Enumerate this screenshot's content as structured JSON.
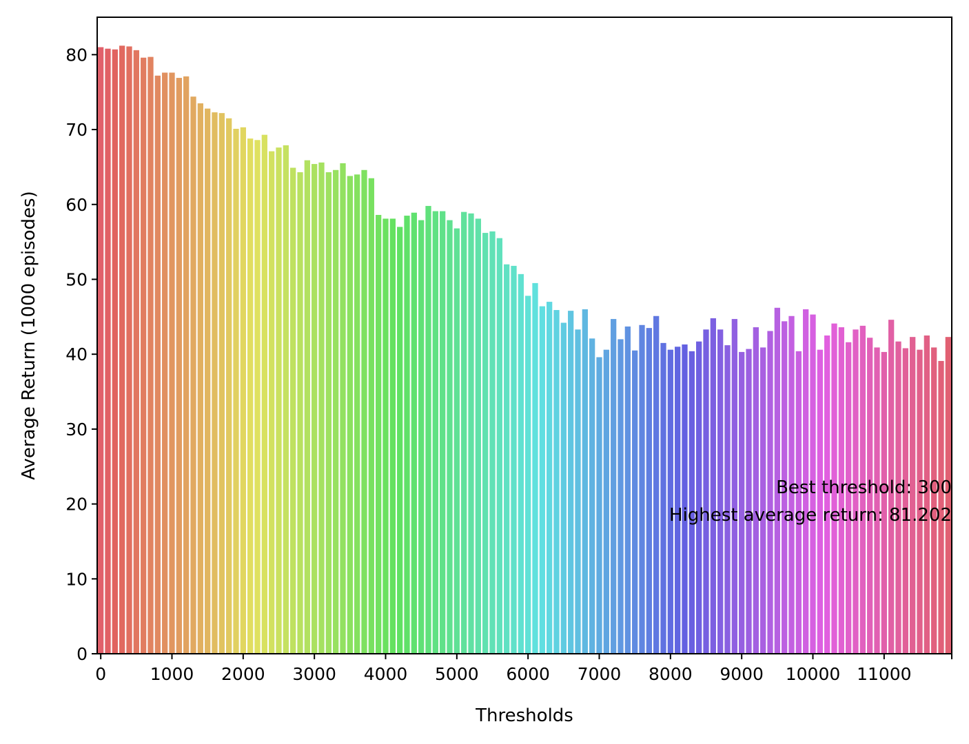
{
  "chart_data": {
    "type": "bar",
    "xlabel": "Thresholds",
    "ylabel": "Average Return (1000 episodes)",
    "ylim": [
      0,
      85
    ],
    "yticks": [
      0,
      10,
      20,
      30,
      40,
      50,
      60,
      70,
      80
    ],
    "xticks": [
      "0",
      "1000",
      "2000",
      "3000",
      "4000",
      "5000",
      "6000",
      "7000",
      "8000",
      "9000",
      "10000",
      "11000"
    ],
    "x_start": 0,
    "x_step": 100,
    "grid": false,
    "legend": "none",
    "palette": "husl (pink → orange → olive → green → teal → blue → purple → magenta → pink)",
    "annotation": {
      "line1": "Best threshold: 300",
      "line2": "Highest average return: 81.202"
    },
    "values": [
      81.0,
      80.8,
      80.7,
      81.2,
      81.1,
      80.6,
      79.6,
      79.7,
      77.2,
      77.6,
      77.6,
      76.9,
      77.1,
      74.4,
      73.5,
      72.8,
      72.3,
      72.2,
      71.5,
      70.1,
      70.3,
      68.8,
      68.6,
      69.3,
      67.1,
      67.6,
      67.9,
      64.9,
      64.3,
      65.9,
      65.4,
      65.6,
      64.3,
      64.6,
      65.5,
      63.8,
      64.0,
      64.6,
      63.5,
      58.6,
      58.1,
      58.1,
      57.0,
      58.5,
      58.9,
      57.9,
      59.8,
      59.1,
      59.1,
      57.9,
      56.8,
      59.0,
      58.8,
      58.1,
      56.2,
      56.4,
      55.5,
      52.0,
      51.8,
      50.7,
      47.8,
      49.5,
      46.4,
      47.0,
      45.9,
      44.2,
      45.8,
      43.3,
      46.0,
      42.1,
      39.6,
      40.6,
      44.7,
      42.0,
      43.7,
      40.5,
      43.9,
      43.5,
      45.1,
      41.5,
      40.6,
      41.0,
      41.3,
      40.4,
      41.7,
      43.3,
      44.8,
      43.3,
      41.2,
      44.7,
      40.3,
      40.7,
      43.6,
      40.9,
      43.1,
      46.2,
      44.4,
      45.1,
      40.4,
      46.0,
      45.3,
      40.6,
      42.5,
      44.1,
      43.6,
      41.6,
      43.3,
      43.8,
      42.2,
      40.9,
      40.3,
      44.6,
      41.7,
      40.8,
      42.3,
      40.6,
      42.5,
      40.9,
      39.1,
      42.3
    ]
  }
}
